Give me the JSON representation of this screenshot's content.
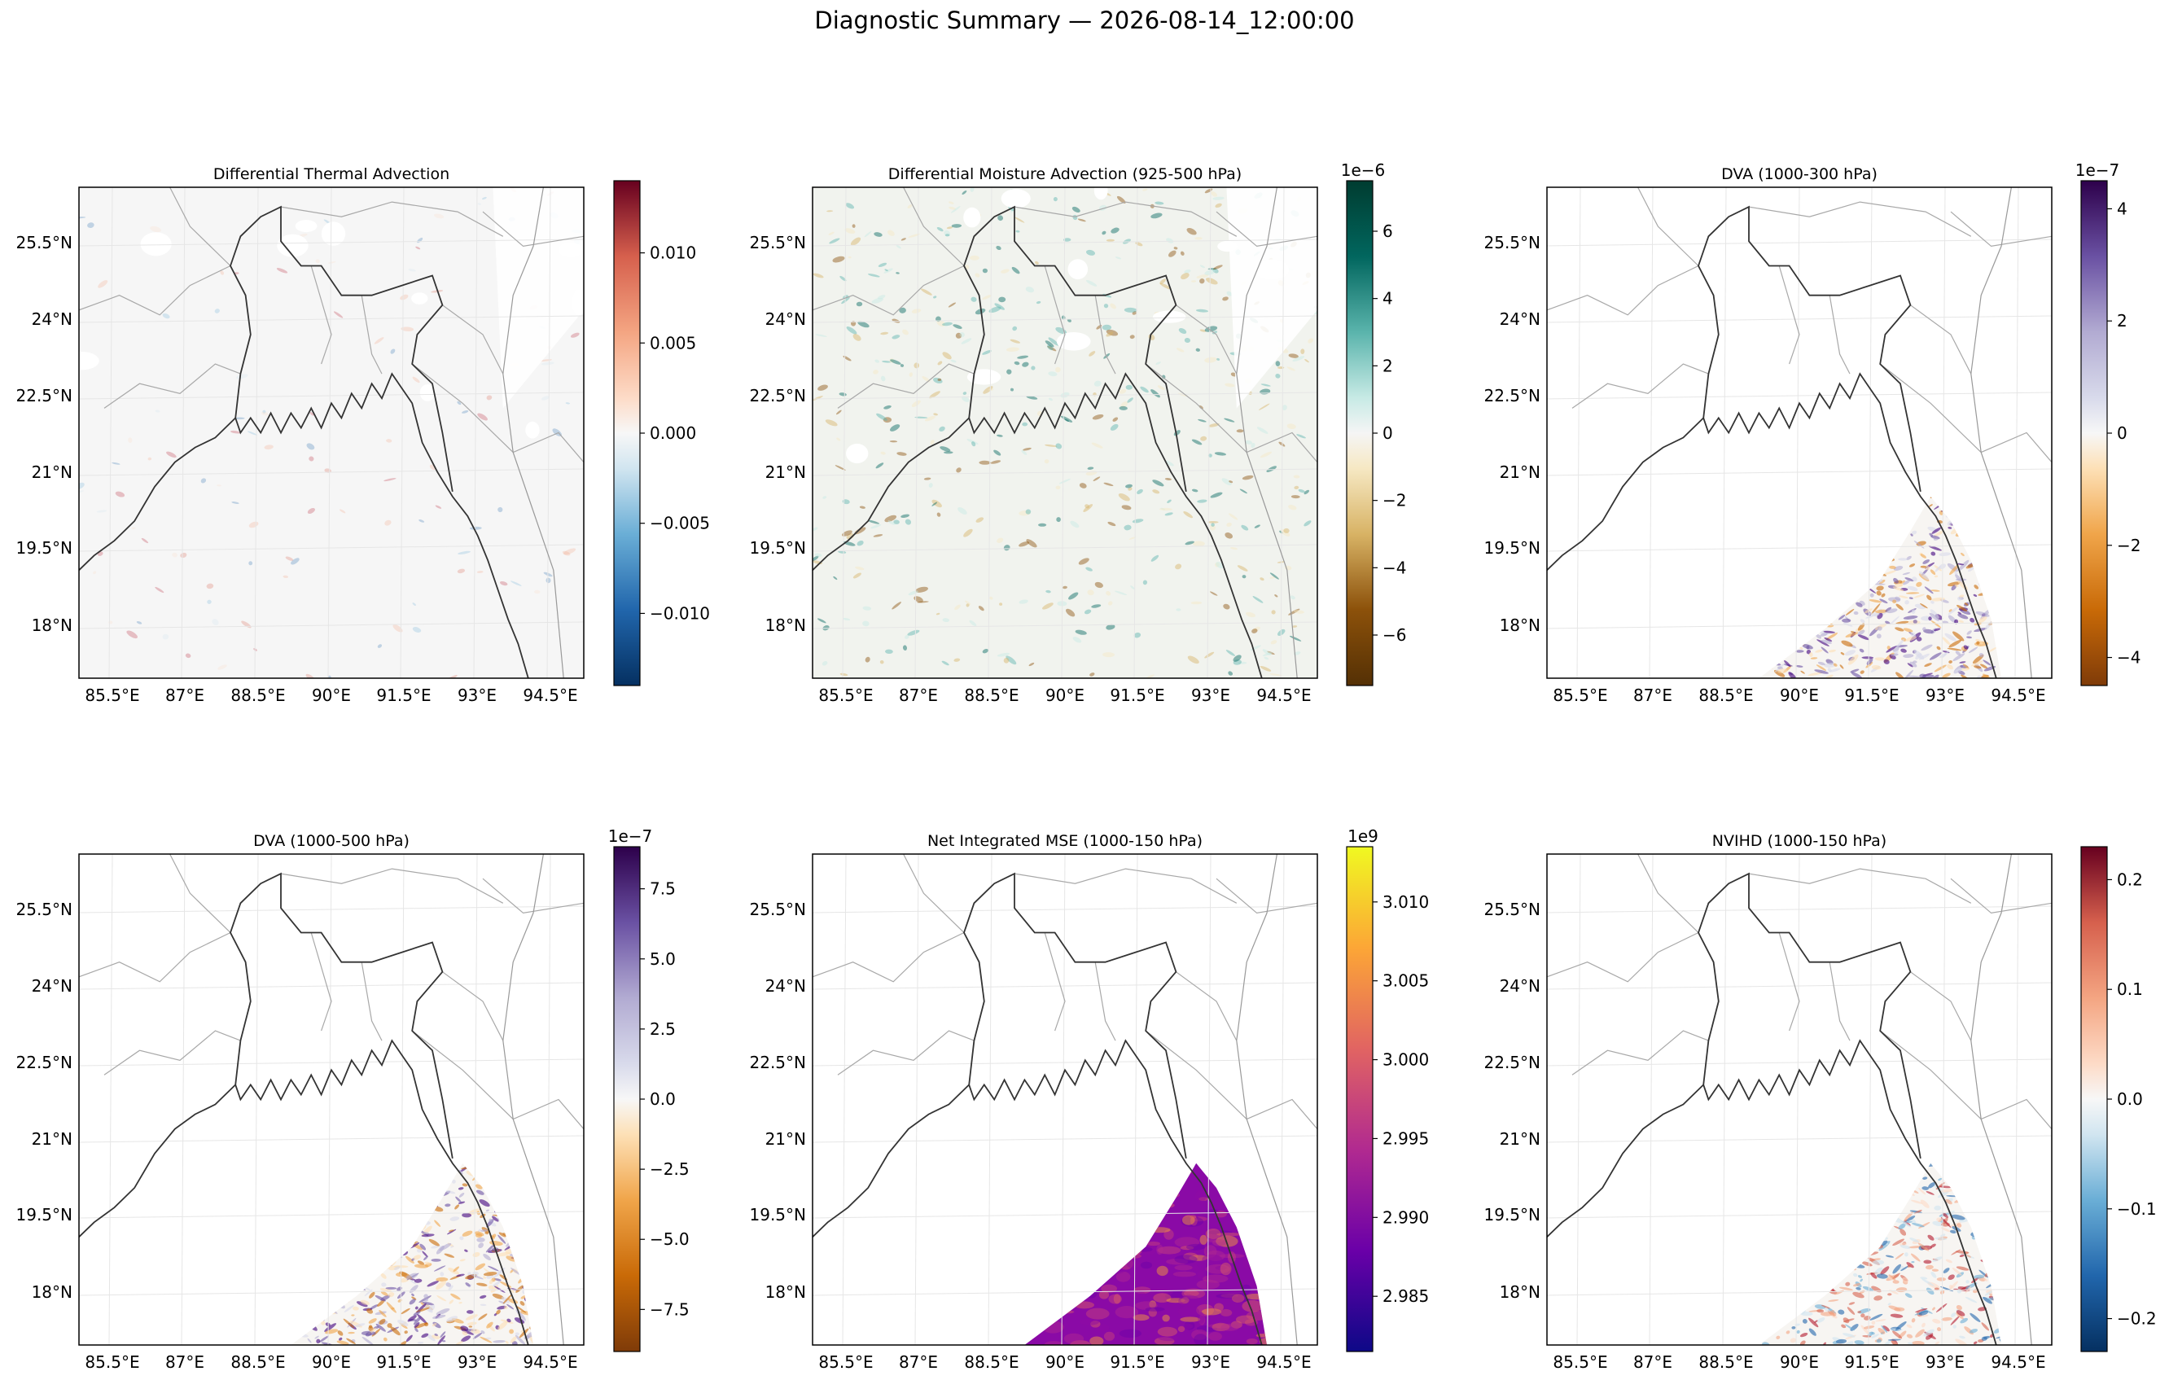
{
  "figure": {
    "suptitle": "Diagnostic Summary — 2026-08-14_12:00:00"
  },
  "chart_data": [
    {
      "type": "heatmap",
      "title": "Differential Thermal Advection",
      "x_ticks": [
        "85.5°E",
        "87°E",
        "88.5°E",
        "90°E",
        "91.5°E",
        "93°E",
        "94.5°E"
      ],
      "y_ticks": [
        "25.5°N",
        "24°N",
        "22.5°N",
        "21°N",
        "19.5°N",
        "18°N"
      ],
      "colorbar": {
        "colormap": "RdBu_r",
        "range": [
          -0.014,
          0.014
        ],
        "ticks": [
          -0.01,
          -0.005,
          0.0,
          0.005,
          0.01
        ],
        "tick_labels": [
          "−0.010",
          "−0.005",
          "0.000",
          "0.005",
          "0.010"
        ],
        "offset_label": ""
      },
      "field_pattern": "sparse-noise"
    },
    {
      "type": "heatmap",
      "title": "Differential Moisture Advection (925-500 hPa)",
      "x_ticks": [
        "85.5°E",
        "87°E",
        "88.5°E",
        "90°E",
        "91.5°E",
        "93°E",
        "94.5°E"
      ],
      "y_ticks": [
        "25.5°N",
        "24°N",
        "22.5°N",
        "21°N",
        "19.5°N",
        "18°N"
      ],
      "colorbar": {
        "colormap": "BrBG",
        "range": [
          -7.5,
          7.5
        ],
        "ticks": [
          -6,
          -4,
          -2,
          0,
          2,
          4,
          6
        ],
        "tick_labels": [
          "−6",
          "−4",
          "−2",
          "0",
          "2",
          "4",
          "6"
        ],
        "offset_label": "1e−6"
      },
      "field_pattern": "full-domain-noise"
    },
    {
      "type": "heatmap",
      "title": "DVA (1000-300 hPa)",
      "x_ticks": [
        "85.5°E",
        "87°E",
        "88.5°E",
        "90°E",
        "91.5°E",
        "93°E",
        "94.5°E"
      ],
      "y_ticks": [
        "25.5°N",
        "24°N",
        "22.5°N",
        "21°N",
        "19.5°N",
        "18°N"
      ],
      "colorbar": {
        "colormap": "PuOr_r",
        "range": [
          -4.5,
          4.5
        ],
        "ticks": [
          -4,
          -2,
          0,
          2,
          4
        ],
        "tick_labels": [
          "−4",
          "−2",
          "0",
          "2",
          "4"
        ],
        "offset_label": "1e−7"
      },
      "field_pattern": "southeast-ocean"
    },
    {
      "type": "heatmap",
      "title": "DVA (1000-500 hPa)",
      "x_ticks": [
        "85.5°E",
        "87°E",
        "88.5°E",
        "90°E",
        "91.5°E",
        "93°E",
        "94.5°E"
      ],
      "y_ticks": [
        "25.5°N",
        "24°N",
        "22.5°N",
        "21°N",
        "19.5°N",
        "18°N"
      ],
      "colorbar": {
        "colormap": "PuOr_r",
        "range": [
          -9,
          9
        ],
        "ticks": [
          -7.5,
          -5.0,
          -2.5,
          0.0,
          2.5,
          5.0,
          7.5
        ],
        "tick_labels": [
          "−7.5",
          "−5.0",
          "−2.5",
          "0.0",
          "2.5",
          "5.0",
          "7.5"
        ],
        "offset_label": "1e−7"
      },
      "field_pattern": "southeast-ocean"
    },
    {
      "type": "heatmap",
      "title": "Net Integrated MSE (1000-150 hPa)",
      "x_ticks": [
        "85.5°E",
        "87°E",
        "88.5°E",
        "90°E",
        "91.5°E",
        "93°E",
        "94.5°E"
      ],
      "y_ticks": [
        "25.5°N",
        "24°N",
        "22.5°N",
        "21°N",
        "19.5°N",
        "18°N"
      ],
      "colorbar": {
        "colormap": "plasma",
        "range": [
          2.9815,
          3.0135
        ],
        "ticks": [
          2.985,
          2.99,
          2.995,
          3.0,
          3.005,
          3.01
        ],
        "tick_labels": [
          "2.985",
          "2.990",
          "2.995",
          "3.000",
          "3.005",
          "3.010"
        ],
        "offset_label": "1e9"
      },
      "field_pattern": "southeast-ocean-solid"
    },
    {
      "type": "heatmap",
      "title": "NVIHD (1000-150 hPa)",
      "x_ticks": [
        "85.5°E",
        "87°E",
        "88.5°E",
        "90°E",
        "91.5°E",
        "93°E",
        "94.5°E"
      ],
      "y_ticks": [
        "25.5°N",
        "24°N",
        "22.5°N",
        "21°N",
        "19.5°N",
        "18°N"
      ],
      "colorbar": {
        "colormap": "RdBu_r",
        "range": [
          -0.23,
          0.23
        ],
        "ticks": [
          -0.2,
          -0.1,
          0.0,
          0.1,
          0.2
        ],
        "tick_labels": [
          "−0.2",
          "−0.1",
          "0.0",
          "0.1",
          "0.2"
        ],
        "offset_label": ""
      },
      "field_pattern": "southeast-ocean"
    }
  ]
}
